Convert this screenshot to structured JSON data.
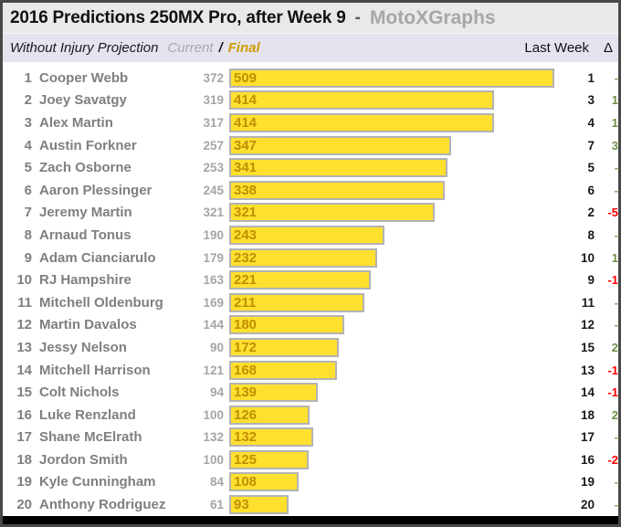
{
  "header": {
    "title": "2016 Predictions 250MX Pro, after Week 9",
    "separator": "-",
    "brand": "MotoXGraphs",
    "subtitle": "Without Injury Projection",
    "legend_current": "Current",
    "legend_slash": "/",
    "legend_final": "Final",
    "col_last_week": "Last Week",
    "col_delta": "Δ"
  },
  "colors": {
    "bar_fill": "#ffe02e",
    "bar_border": "#b3b3b3",
    "bar_value_text": "#bf8f00",
    "final_accent": "#d09b00",
    "brand_gray": "#a6a6a6",
    "name_gray": "#7f7f7f",
    "delta_positive": "#6d8f47",
    "delta_negative": "#ff0000",
    "header_bg": "#e9e9e9",
    "subheader_bg": "#e4e4ef"
  },
  "chart_data": {
    "type": "bar",
    "orientation": "horizontal",
    "title": "2016 Predictions 250MX Pro, after Week 9 - MotoXGraphs",
    "subtitle": "Without Injury Projection",
    "legend": [
      "Current",
      "Final"
    ],
    "xlim": [
      0,
      509
    ],
    "grid": false,
    "categories": [
      "Cooper Webb",
      "Joey Savatgy",
      "Alex Martin",
      "Austin Forkner",
      "Zach Osborne",
      "Aaron Plessinger",
      "Jeremy Martin",
      "Arnaud Tonus",
      "Adam Cianciarulo",
      "RJ Hampshire",
      "Mitchell Oldenburg",
      "Martin Davalos",
      "Jessy Nelson",
      "Mitchell Harrison",
      "Colt Nichols",
      "Luke Renzland",
      "Shane McElrath",
      "Jordon Smith",
      "Kyle Cunningham",
      "Anthony Rodriguez"
    ],
    "series": [
      {
        "name": "Current",
        "values": [
          372,
          319,
          317,
          257,
          253,
          245,
          321,
          190,
          179,
          163,
          169,
          144,
          90,
          121,
          94,
          100,
          132,
          100,
          84,
          61
        ]
      },
      {
        "name": "Final",
        "values": [
          509,
          414,
          414,
          347,
          341,
          338,
          321,
          243,
          232,
          221,
          211,
          180,
          172,
          168,
          139,
          126,
          132,
          125,
          108,
          93
        ]
      }
    ],
    "rows": [
      {
        "rank": "1",
        "name": "Cooper Webb",
        "current": "372",
        "final": 509,
        "last_week": "1",
        "delta": "-"
      },
      {
        "rank": "2",
        "name": "Joey Savatgy",
        "current": "319",
        "final": 414,
        "last_week": "3",
        "delta": "1"
      },
      {
        "rank": "3",
        "name": "Alex Martin",
        "current": "317",
        "final": 414,
        "last_week": "4",
        "delta": "1"
      },
      {
        "rank": "4",
        "name": "Austin Forkner",
        "current": "257",
        "final": 347,
        "last_week": "7",
        "delta": "3"
      },
      {
        "rank": "5",
        "name": "Zach Osborne",
        "current": "253",
        "final": 341,
        "last_week": "5",
        "delta": "-"
      },
      {
        "rank": "6",
        "name": "Aaron Plessinger",
        "current": "245",
        "final": 338,
        "last_week": "6",
        "delta": "-"
      },
      {
        "rank": "7",
        "name": "Jeremy Martin",
        "current": "321",
        "final": 321,
        "last_week": "2",
        "delta": "-5"
      },
      {
        "rank": "8",
        "name": "Arnaud Tonus",
        "current": "190",
        "final": 243,
        "last_week": "8",
        "delta": "-"
      },
      {
        "rank": "9",
        "name": "Adam Cianciarulo",
        "current": "179",
        "final": 232,
        "last_week": "10",
        "delta": "1"
      },
      {
        "rank": "10",
        "name": "RJ Hampshire",
        "current": "163",
        "final": 221,
        "last_week": "9",
        "delta": "-1"
      },
      {
        "rank": "11",
        "name": "Mitchell Oldenburg",
        "current": "169",
        "final": 211,
        "last_week": "11",
        "delta": "-"
      },
      {
        "rank": "12",
        "name": "Martin Davalos",
        "current": "144",
        "final": 180,
        "last_week": "12",
        "delta": "-"
      },
      {
        "rank": "13",
        "name": "Jessy Nelson",
        "current": "90",
        "final": 172,
        "last_week": "15",
        "delta": "2"
      },
      {
        "rank": "14",
        "name": "Mitchell Harrison",
        "current": "121",
        "final": 168,
        "last_week": "13",
        "delta": "-1"
      },
      {
        "rank": "15",
        "name": "Colt Nichols",
        "current": "94",
        "final": 139,
        "last_week": "14",
        "delta": "-1"
      },
      {
        "rank": "16",
        "name": "Luke Renzland",
        "current": "100",
        "final": 126,
        "last_week": "18",
        "delta": "2"
      },
      {
        "rank": "17",
        "name": "Shane McElrath",
        "current": "132",
        "final": 132,
        "last_week": "17",
        "delta": "-"
      },
      {
        "rank": "18",
        "name": "Jordon Smith",
        "current": "100",
        "final": 125,
        "last_week": "16",
        "delta": "-2"
      },
      {
        "rank": "19",
        "name": "Kyle Cunningham",
        "current": "84",
        "final": 108,
        "last_week": "19",
        "delta": "-"
      },
      {
        "rank": "20",
        "name": "Anthony Rodriguez",
        "current": "61",
        "final": 93,
        "last_week": "20",
        "delta": "-"
      }
    ]
  }
}
